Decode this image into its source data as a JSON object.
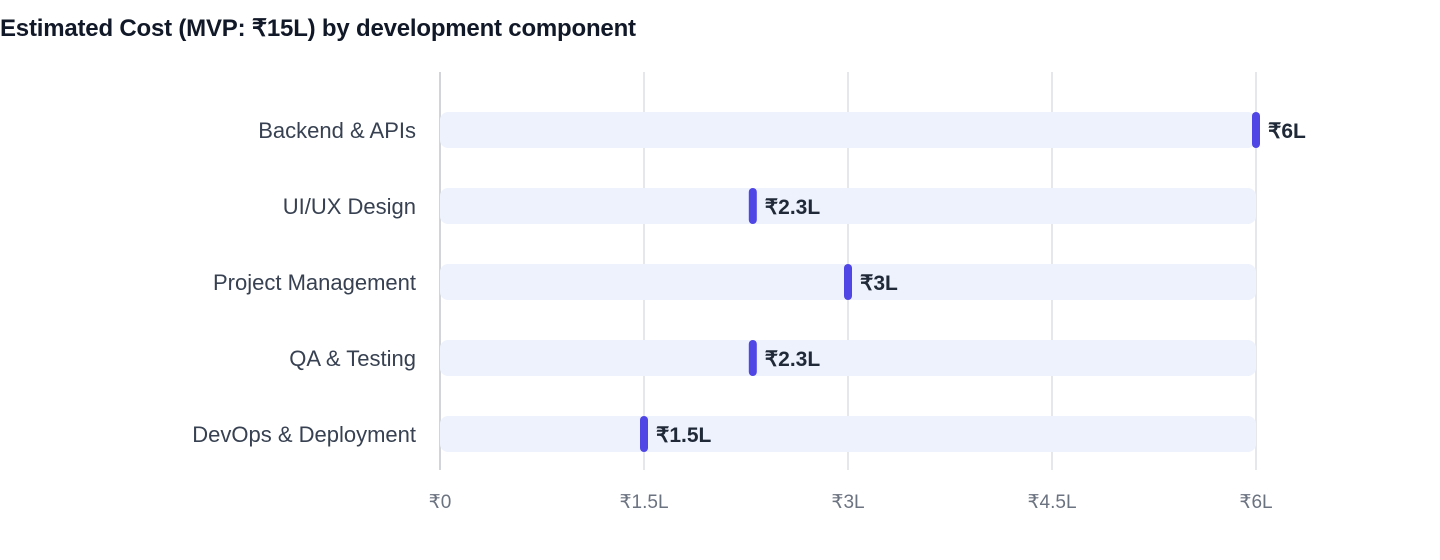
{
  "chart_data": {
    "type": "bar",
    "title": "Estimated Cost (MVP: ₹15L) by development component",
    "categories": [
      "Backend & APIs",
      "UI/UX Design",
      "Project Management",
      "QA & Testing",
      "DevOps & Deployment"
    ],
    "values": [
      6,
      2.3,
      3,
      2.3,
      1.5
    ],
    "value_labels": [
      "₹6L",
      "₹2.3L",
      "₹3L",
      "₹2.3L",
      "₹1.5L"
    ],
    "xlim": [
      0,
      6
    ],
    "xticks": [
      0,
      1.5,
      3,
      4.5,
      6
    ],
    "xtick_labels": [
      "₹0",
      "₹1.5L",
      "₹3L",
      "₹4.5L",
      "₹6L"
    ],
    "orientation": "horizontal",
    "grid": true,
    "colors": {
      "marker": "#4f46e5",
      "track": "#eef2fd",
      "grid": "#e5e7eb",
      "axis": "#d1d5db"
    }
  }
}
